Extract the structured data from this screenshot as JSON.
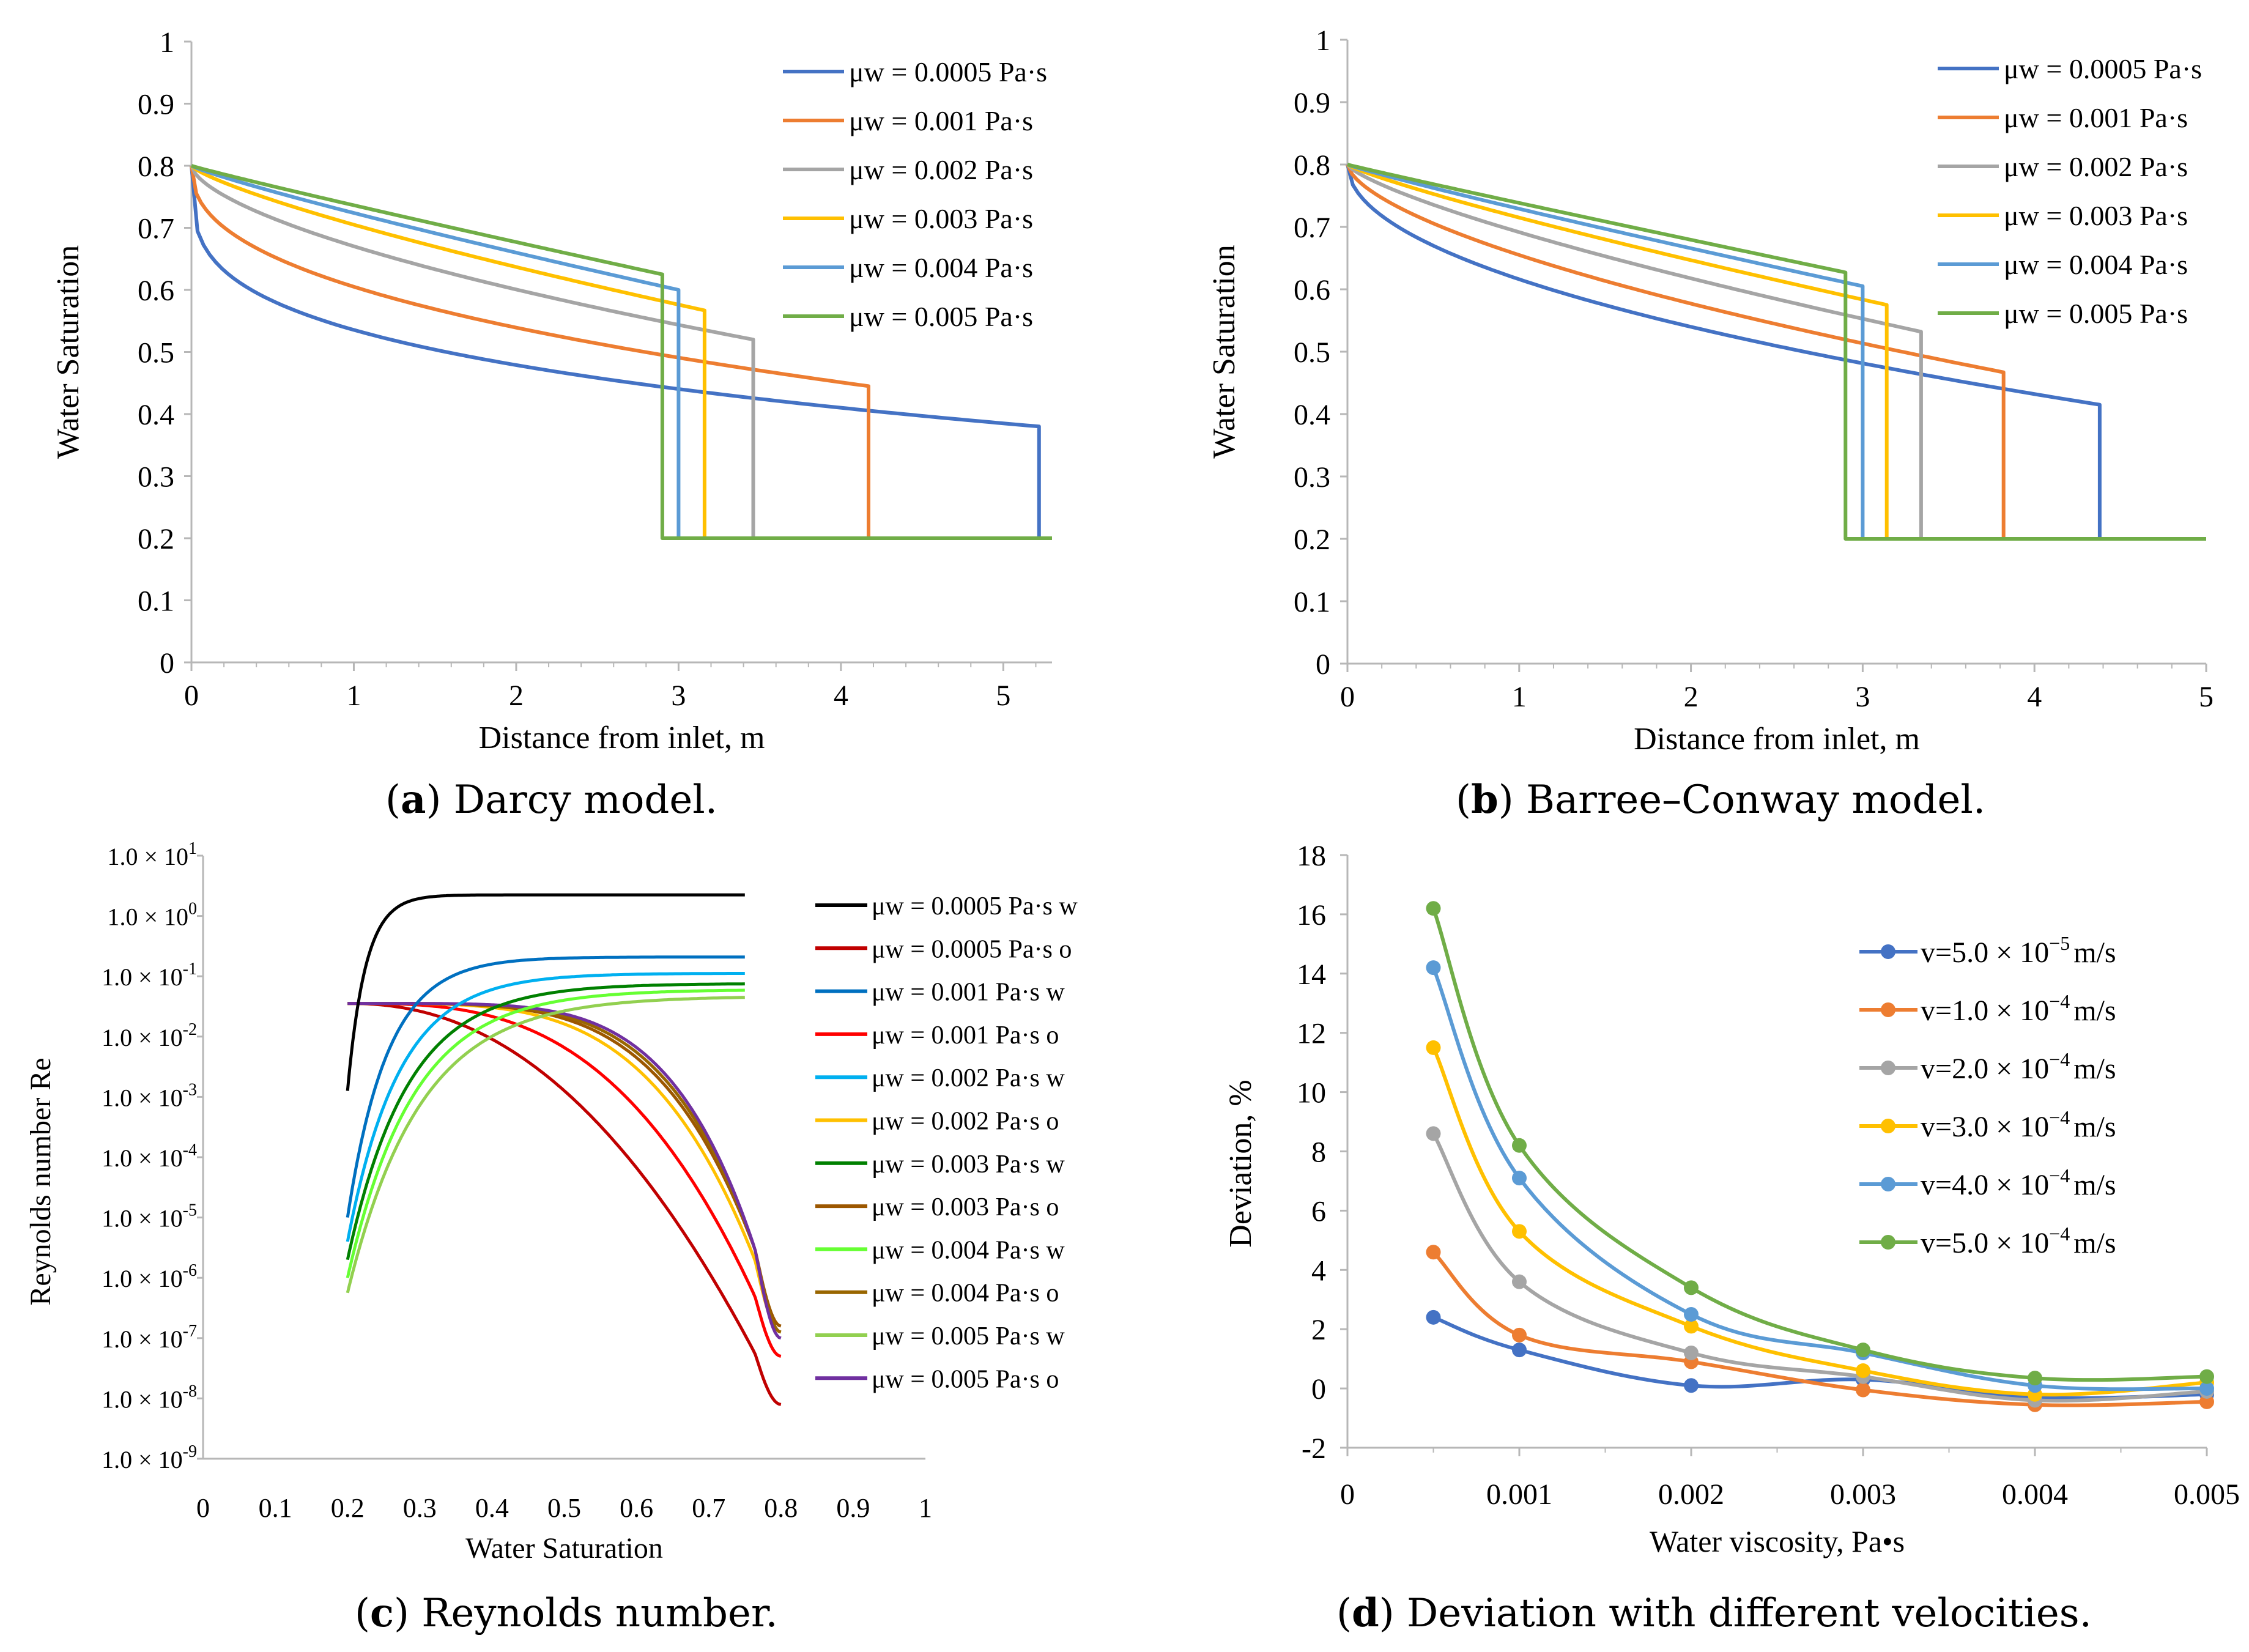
{
  "captions": {
    "a": {
      "letter": "a",
      "text": ") Darcy model."
    },
    "b": {
      "letter": "b",
      "text": ") Barree–Conway model."
    },
    "c": {
      "letter": "c",
      "text": ") Reynolds number."
    },
    "d": {
      "letter": "d",
      "text": ") Deviation with different velocities."
    }
  },
  "chart_data": [
    {
      "id": "a",
      "type": "line",
      "title": "",
      "xlabel": "Distance from inlet, m",
      "ylabel": "Water Saturation",
      "xlim": [
        0,
        5.3
      ],
      "ylim": [
        0,
        1
      ],
      "xticks": [
        "0",
        "1",
        "2",
        "3",
        "4",
        "5"
      ],
      "yticks": [
        "0",
        "0.1",
        "0.2",
        "0.3",
        "0.4",
        "0.5",
        "0.6",
        "0.7",
        "0.8",
        "0.9",
        "1"
      ],
      "legend_position": "top-right",
      "series": [
        {
          "name": "μw = 0.0005 Pa·s",
          "color": "#4472C4",
          "x_front": 5.22,
          "s_front": 0.38,
          "shape": 0.28
        },
        {
          "name": "μw = 0.001 Pa·s",
          "color": "#ED7D31",
          "x_front": 4.17,
          "s_front": 0.445,
          "shape": 0.42
        },
        {
          "name": "μw = 0.002 Pa·s",
          "color": "#A5A5A5",
          "x_front": 3.46,
          "s_front": 0.52,
          "shape": 0.62
        },
        {
          "name": "μw = 0.003 Pa·s",
          "color": "#FFC000",
          "x_front": 3.16,
          "s_front": 0.567,
          "shape": 0.78
        },
        {
          "name": "μw = 0.004 Pa·s",
          "color": "#5B9BD5",
          "x_front": 3.0,
          "s_front": 0.6,
          "shape": 0.88
        },
        {
          "name": "μw = 0.005 Pa·s",
          "color": "#70AD47",
          "x_front": 2.9,
          "s_front": 0.625,
          "shape": 0.95
        }
      ],
      "initial_saturation": 0.8,
      "residual_saturation": 0.2
    },
    {
      "id": "b",
      "type": "line",
      "title": "",
      "xlabel": "Distance from inlet, m",
      "ylabel": "Water Saturation",
      "xlim": [
        0,
        5
      ],
      "ylim": [
        0,
        1
      ],
      "xticks": [
        "0",
        "1",
        "2",
        "3",
        "4",
        "5"
      ],
      "yticks": [
        "0",
        "0.1",
        "0.2",
        "0.3",
        "0.4",
        "0.5",
        "0.6",
        "0.7",
        "0.8",
        "0.9",
        "1"
      ],
      "legend_position": "top-right",
      "series": [
        {
          "name": "μw = 0.0005 Pa·s",
          "color": "#4472C4",
          "x_front": 4.38,
          "s_front": 0.415,
          "shape": 0.5
        },
        {
          "name": "μw = 0.001 Pa·s",
          "color": "#ED7D31",
          "x_front": 3.82,
          "s_front": 0.467,
          "shape": 0.62
        },
        {
          "name": "μw = 0.002 Pa·s",
          "color": "#A5A5A5",
          "x_front": 3.34,
          "s_front": 0.532,
          "shape": 0.75
        },
        {
          "name": "μw = 0.003 Pa·s",
          "color": "#FFC000",
          "x_front": 3.14,
          "s_front": 0.575,
          "shape": 0.85
        },
        {
          "name": "μw = 0.004 Pa·s",
          "color": "#5B9BD5",
          "x_front": 3.0,
          "s_front": 0.605,
          "shape": 0.92
        },
        {
          "name": "μw = 0.005 Pa·s",
          "color": "#70AD47",
          "x_front": 2.9,
          "s_front": 0.627,
          "shape": 0.97
        }
      ],
      "initial_saturation": 0.8,
      "residual_saturation": 0.2
    },
    {
      "id": "c",
      "type": "line",
      "title": "",
      "xlabel": "Water Saturation",
      "ylabel": "Reynolds number Re",
      "xlim": [
        0,
        1
      ],
      "ylim_log10": [
        -9,
        1
      ],
      "xticks": [
        "0",
        "0.1",
        "0.2",
        "0.3",
        "0.4",
        "0.5",
        "0.6",
        "0.7",
        "0.8",
        "0.9",
        "1"
      ],
      "ytick_mantissa": "1.0",
      "ytick_times": "×",
      "ytick_base": "10",
      "ytick_exponents": [
        "1",
        "0",
        "-1",
        "-2",
        "-3",
        "-4",
        "-5",
        "-6",
        "-7",
        "-8",
        "-9"
      ],
      "legend_position": "top-right",
      "series": [
        {
          "name": "μw = 0.0005 Pa·s w",
          "color": "#000000",
          "phase": "w",
          "log_end": 0.35,
          "log_start": -2.9,
          "k": 40
        },
        {
          "name": "μw = 0.0005 Pa·s o",
          "color": "#C00000",
          "phase": "o",
          "log_begin": -1.45,
          "log_min": -8.1,
          "p": 2.2
        },
        {
          "name": "μw = 0.001 Pa·s w",
          "color": "#0070C0",
          "phase": "w",
          "log_end": -0.68,
          "log_start": -5.0,
          "k": 18
        },
        {
          "name": "μw = 0.001 Pa·s o",
          "color": "#FF0000",
          "phase": "o",
          "log_begin": -1.45,
          "log_min": -7.3,
          "p": 3.0
        },
        {
          "name": "μw = 0.002 Pa·s w",
          "color": "#00B0F0",
          "phase": "w",
          "log_end": -0.95,
          "log_start": -5.4,
          "k": 14
        },
        {
          "name": "μw = 0.002 Pa·s o",
          "color": "#FFC000",
          "phase": "o",
          "log_begin": -1.45,
          "log_min": -6.9,
          "p": 4.0
        },
        {
          "name": "μw = 0.003 Pa·s w",
          "color": "#008000",
          "phase": "w",
          "log_end": -1.12,
          "log_start": -5.7,
          "k": 12
        },
        {
          "name": "μw = 0.003 Pa·s o",
          "color": "#9C5700",
          "phase": "o",
          "log_begin": -1.45,
          "log_min": -6.8,
          "p": 4.4
        },
        {
          "name": "μw = 0.004 Pa·s w",
          "color": "#66FF33",
          "phase": "w",
          "log_end": -1.22,
          "log_start": -6.0,
          "k": 11
        },
        {
          "name": "μw = 0.004 Pa·s o",
          "color": "#996600",
          "phase": "o",
          "log_begin": -1.45,
          "log_min": -6.9,
          "p": 4.7
        },
        {
          "name": "μw = 0.005 Pa·s w",
          "color": "#92D050",
          "phase": "w",
          "log_end": -1.33,
          "log_start": -6.25,
          "k": 10
        },
        {
          "name": "μw = 0.005 Pa·s o",
          "color": "#7030A0",
          "phase": "o",
          "log_begin": -1.45,
          "log_min": -7.0,
          "p": 5.0
        }
      ],
      "s_min": 0.2,
      "s_max": 0.8
    },
    {
      "id": "d",
      "type": "line",
      "title": "",
      "xlabel": "Water viscosity, Pa•s",
      "ylabel": "Deviation, %",
      "xlim": [
        0,
        0.005
      ],
      "ylim": [
        -2,
        18
      ],
      "xticks": [
        "0",
        "0.001",
        "0.002",
        "0.003",
        "0.004",
        "0.005"
      ],
      "yticks": [
        "-2",
        "0",
        "2",
        "4",
        "6",
        "8",
        "10",
        "12",
        "14",
        "16",
        "18"
      ],
      "legend_position": "right",
      "x": [
        0.0005,
        0.001,
        0.002,
        0.003,
        0.004,
        0.005
      ],
      "series": [
        {
          "name_pre": "v=5.0",
          "name_times": "×",
          "name_base": "10",
          "name_exp": "−5",
          "name_unit": "m/s",
          "color": "#4472C4",
          "values": [
            2.4,
            1.3,
            0.1,
            0.3,
            -0.3,
            -0.2
          ]
        },
        {
          "name_pre": "v=1.0",
          "name_times": "×",
          "name_base": "10",
          "name_exp": "−4",
          "name_unit": "m/s",
          "color": "#ED7D31",
          "values": [
            4.6,
            1.8,
            0.9,
            -0.05,
            -0.55,
            -0.45
          ]
        },
        {
          "name_pre": "v=2.0",
          "name_times": "×",
          "name_base": "10",
          "name_exp": "−4",
          "name_unit": "m/s",
          "color": "#A5A5A5",
          "values": [
            8.6,
            3.6,
            1.2,
            0.4,
            -0.4,
            -0.1
          ]
        },
        {
          "name_pre": "v=3.0",
          "name_times": "×",
          "name_base": "10",
          "name_exp": "−4",
          "name_unit": "m/s",
          "color": "#FFC000",
          "values": [
            11.5,
            5.3,
            2.1,
            0.6,
            -0.2,
            0.2
          ]
        },
        {
          "name_pre": "v=4.0",
          "name_times": "×",
          "name_base": "10",
          "name_exp": "−4",
          "name_unit": "m/s",
          "color": "#5B9BD5",
          "values": [
            14.2,
            7.1,
            2.5,
            1.2,
            0.1,
            0.0
          ]
        },
        {
          "name_pre": "v=5.0",
          "name_times": "×",
          "name_base": "10",
          "name_exp": "−4",
          "name_unit": "m/s",
          "color": "#70AD47",
          "values": [
            16.2,
            8.2,
            3.4,
            1.3,
            0.35,
            0.4
          ]
        }
      ]
    }
  ]
}
